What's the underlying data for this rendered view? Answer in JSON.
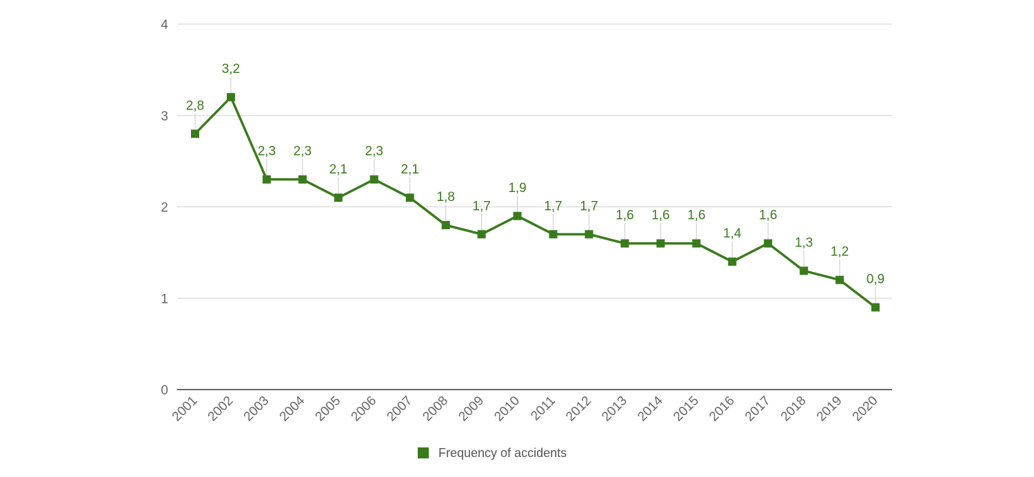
{
  "colors": {
    "series": "#3a7a1d",
    "grid": "#d9d9d9",
    "axis": "#333333",
    "leader": "#c8c8c8"
  },
  "chart_data": {
    "type": "line",
    "title": "",
    "xlabel": "",
    "ylabel": "",
    "ylim": [
      0,
      4
    ],
    "yticks": [
      "0",
      "1",
      "2",
      "3",
      "4"
    ],
    "grid": true,
    "legend_position": "bottom",
    "categories": [
      "2001",
      "2002",
      "2003",
      "2004",
      "2005",
      "2006",
      "2007",
      "2008",
      "2009",
      "2010",
      "2011",
      "2012",
      "2013",
      "2014",
      "2015",
      "2016",
      "2017",
      "2018",
      "2019",
      "2020"
    ],
    "series": [
      {
        "name": "Frequency of accidents",
        "values": [
          2.8,
          3.2,
          2.3,
          2.3,
          2.1,
          2.3,
          2.1,
          1.8,
          1.7,
          1.9,
          1.7,
          1.7,
          1.6,
          1.6,
          1.6,
          1.4,
          1.6,
          1.3,
          1.2,
          0.9
        ],
        "labels": [
          "2,8",
          "3,2",
          "2,3",
          "2,3",
          "2,1",
          "2,3",
          "2,1",
          "1,8",
          "1,7",
          "1,9",
          "1,7",
          "1,7",
          "1,6",
          "1,6",
          "1,6",
          "1,4",
          "1,6",
          "1,3",
          "1,2",
          "0,9"
        ]
      }
    ]
  },
  "legend": {
    "label": "Frequency of accidents"
  }
}
